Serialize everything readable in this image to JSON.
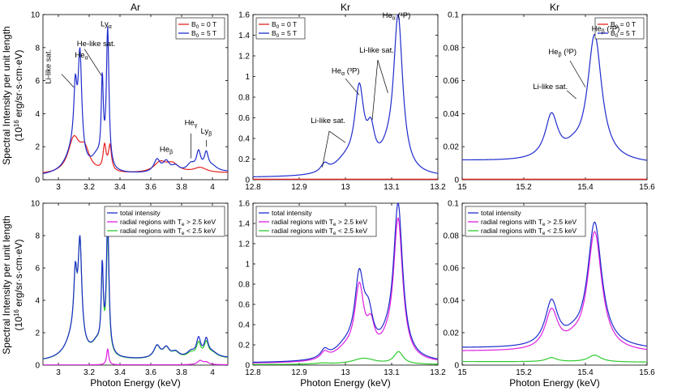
{
  "figure": {
    "shared_ylabel_line1": "Spectral Intensity per unit length",
    "shared_ylabel_line2": "(10^16 erg/sr·s·cm·eV)",
    "shared_xlabel": "Photon Energy (keV)"
  },
  "chart_data": [
    {
      "id": "top-ar",
      "type": "line",
      "title": "Ar",
      "xlabel": "",
      "ylabel": "Spectral Intensity per unit length",
      "xlim": [
        2.9,
        4.1
      ],
      "ylim": [
        0,
        10
      ],
      "xticks": [
        3,
        3.2,
        3.4,
        3.6,
        3.8,
        4
      ],
      "yticks": [
        0,
        2,
        4,
        6,
        8,
        10
      ],
      "xticklabels": [
        "3",
        "3.2",
        "3.4",
        "3.6",
        "3.8",
        "4"
      ],
      "yticklabels": [
        "0",
        "2",
        "4",
        "6",
        "8",
        "10"
      ],
      "legend": {
        "location": "top-right",
        "entries": [
          {
            "label": "B0 = 0 T",
            "color": "#e52222"
          },
          {
            "label": "B0 = 5 T",
            "color": "#1f2ccc"
          }
        ]
      },
      "series": [
        {
          "name": "B0 = 0 T",
          "color": "#e52222",
          "baseline": 0.3,
          "baseline_end": 0.4,
          "peaks": [
            [
              3.1,
              2.0,
              0.045
            ],
            [
              3.17,
              1.3,
              0.04
            ],
            [
              3.3,
              1.5,
              0.012
            ],
            [
              3.335,
              1.5,
              0.012
            ],
            [
              3.66,
              0.6,
              0.05
            ],
            [
              3.74,
              0.5,
              0.05
            ],
            [
              3.92,
              0.3,
              0.05
            ]
          ]
        },
        {
          "name": "B0 = 5 T",
          "color": "#1f2ccc",
          "baseline": 0.2,
          "baseline_end": 0.45,
          "peaks": [
            [
              3.11,
              3.5,
              0.012
            ],
            [
              3.14,
              6.1,
              0.014
            ],
            [
              3.285,
              5.0,
              0.008
            ],
            [
              3.32,
              8.4,
              0.01
            ],
            [
              3.1,
              1.5,
              0.06
            ],
            [
              3.25,
              0.8,
              0.04
            ],
            [
              3.64,
              0.75,
              0.025
            ],
            [
              3.7,
              0.6,
              0.025
            ],
            [
              3.76,
              0.35,
              0.03
            ],
            [
              3.86,
              0.45,
              0.03
            ],
            [
              3.91,
              1.1,
              0.017
            ],
            [
              3.96,
              1.0,
              0.016
            ],
            [
              4.0,
              0.3,
              0.04
            ]
          ]
        }
      ],
      "annotations": [
        {
          "text": "Ly",
          "sub": "α",
          "x": 3.31,
          "y": 9.3,
          "ax": 3.31,
          "ay": 9.0,
          "anchor": "middle"
        },
        {
          "text": "He-like sat.",
          "x": 3.12,
          "y": 8.1,
          "ax": 3.28,
          "ay": 6.3,
          "lx": 3.17,
          "ly": 7.9,
          "anchor": "start"
        },
        {
          "text": "He",
          "sub": "α",
          "x": 3.15,
          "y": 7.4,
          "ax": 3.15,
          "ay": 7.1,
          "anchor": "middle"
        },
        {
          "text": "Li-like sat.",
          "x": 2.95,
          "y": 5.8,
          "ax": 3.1,
          "ay": 5.6,
          "lx": 3.02,
          "ly": 6.4,
          "anchor": "start",
          "vertical": true
        },
        {
          "text": "He",
          "sub": "β",
          "x": 3.7,
          "y": 1.7,
          "ax": 3.7,
          "ay": 1.4,
          "anchor": "middle"
        },
        {
          "text": "He",
          "sub": "γ",
          "x": 3.86,
          "y": 3.3,
          "ax": 3.86,
          "ay": 1.3,
          "lx": 3.86,
          "ly": 2.8,
          "anchor": "middle"
        },
        {
          "text": "Ly",
          "sub": "β",
          "x": 3.96,
          "y": 2.8,
          "ax": 3.96,
          "ay": 2.0,
          "lx": 3.96,
          "ly": 2.4,
          "anchor": "middle"
        }
      ]
    },
    {
      "id": "top-kr1",
      "type": "line",
      "title": "Kr",
      "xlim": [
        12.8,
        13.2
      ],
      "ylim": [
        0,
        1.6
      ],
      "xticks": [
        12.8,
        12.9,
        13,
        13.1,
        13.2
      ],
      "yticks": [
        0,
        0.2,
        0.4,
        0.6,
        0.8,
        1,
        1.2,
        1.4,
        1.6
      ],
      "xticklabels": [
        "12.8",
        "12.9",
        "13",
        "13.1",
        "13.2"
      ],
      "yticklabels": [
        "0",
        "0.2",
        "0.4",
        "0.6",
        "0.8",
        "1",
        "1.2",
        "1.4",
        "1.6"
      ],
      "legend": {
        "location": "top-left",
        "entries": [
          {
            "label": "B0 = 0 T",
            "color": "#e52222"
          },
          {
            "label": "B0 = 5 T",
            "color": "#1f2ccc"
          }
        ]
      },
      "series": [
        {
          "name": "B0 = 0 T",
          "color": "#e52222",
          "baseline": 0.005,
          "baseline_end": 0.005,
          "peaks": []
        },
        {
          "name": "B0 = 5 T",
          "color": "#1f2ccc",
          "baseline": 0.02,
          "baseline_end": 0.02,
          "peaks": [
            [
              12.955,
              0.08,
              0.01
            ],
            [
              13.03,
              0.77,
              0.012
            ],
            [
              13.055,
              0.32,
              0.01
            ],
            [
              13.0,
              0.12,
              0.03
            ],
            [
              13.114,
              1.5,
              0.012
            ],
            [
              13.09,
              0.12,
              0.02
            ]
          ]
        }
      ],
      "annotations": [
        {
          "text": "He",
          "sub": "α",
          "tail": " (¹P)",
          "x": 13.08,
          "y": 1.57,
          "ax": 13.115,
          "ay": 1.52,
          "anchor": "start"
        },
        {
          "text": "Li-like sat.",
          "x": 13.03,
          "y": 1.23,
          "ax": 13.058,
          "ay": 0.58,
          "lx": 13.07,
          "ly": 1.16,
          "ax2": 13.092,
          "ay2": 0.84,
          "anchor": "start"
        },
        {
          "text": "He",
          "sub": "α",
          "tail": " (³P)",
          "x": 12.97,
          "y": 1.03,
          "ax": 13.03,
          "ay": 0.82,
          "lx": 13.0,
          "ly": 0.98,
          "anchor": "start"
        },
        {
          "text": "Li-like sat.",
          "x": 12.925,
          "y": 0.55,
          "ax": 12.95,
          "ay": 0.12,
          "lx": 12.965,
          "ly": 0.47,
          "ax2": 13.0,
          "ay2": 0.36,
          "anchor": "start"
        }
      ]
    },
    {
      "id": "top-kr2",
      "type": "line",
      "title": "Kr",
      "xlim": [
        15.0,
        15.6
      ],
      "ylim": [
        0,
        0.1
      ],
      "xticks": [
        15,
        15.2,
        15.4,
        15.6
      ],
      "yticks": [
        0,
        0.02,
        0.04,
        0.06,
        0.08,
        0.1
      ],
      "xticklabels": [
        "15",
        "15.2",
        "15.4",
        "15.6"
      ],
      "yticklabels": [
        "0",
        "0.02",
        "0.04",
        "0.06",
        "0.08",
        "0.1"
      ],
      "legend": {
        "location": "top-right",
        "entries": [
          {
            "label": "B0 = 0 T",
            "color": "#e52222"
          },
          {
            "label": "B0 = 5 T",
            "color": "#1f2ccc"
          }
        ]
      },
      "series": [
        {
          "name": "B0 = 0 T",
          "color": "#e52222",
          "baseline": 0.0003,
          "baseline_end": 0.0003,
          "peaks": []
        },
        {
          "name": "B0 = 5 T",
          "color": "#1f2ccc",
          "baseline": 0.0115,
          "baseline_end": 0.0095,
          "peaks": [
            [
              15.29,
              0.0265,
              0.025
            ],
            [
              15.43,
              0.0765,
              0.028
            ],
            [
              15.36,
              0.004,
              0.03
            ]
          ]
        }
      ],
      "annotations": [
        {
          "text": "He",
          "sub": "β",
          "tail": " (¹P)",
          "x": 15.42,
          "y": 0.09,
          "ax": 15.43,
          "ay": 0.0885,
          "anchor": "start"
        },
        {
          "text": "He",
          "sub": "β",
          "tail": " (³P)",
          "x": 15.28,
          "y": 0.076,
          "ax": 15.4,
          "ay": 0.056,
          "lx": 15.35,
          "ly": 0.072,
          "anchor": "start"
        },
        {
          "text": "Li-like sat.",
          "x": 15.23,
          "y": 0.055,
          "ax": 15.37,
          "ay": 0.049,
          "lx": 15.34,
          "ly": 0.054,
          "anchor": "start"
        }
      ]
    },
    {
      "id": "bot-ar",
      "type": "line",
      "title": "",
      "xlabel": "Photon Energy (keV)",
      "xlim": [
        2.9,
        4.1
      ],
      "ylim": [
        0,
        10
      ],
      "xticks": [
        3,
        3.2,
        3.4,
        3.6,
        3.8,
        4
      ],
      "yticks": [
        0,
        2,
        4,
        6,
        8,
        10
      ],
      "xticklabels": [
        "3",
        "3.2",
        "3.4",
        "3.6",
        "3.8",
        "4"
      ],
      "yticklabels": [
        "0",
        "2",
        "4",
        "6",
        "8",
        "10"
      ],
      "legend": {
        "location": "top-right",
        "entries": [
          {
            "label": "total intensity",
            "color": "#1f2ccc"
          },
          {
            "label": "radial regions with T_e > 2.5 keV",
            "color": "#e01ee0"
          },
          {
            "label": "radial regions with T_e < 2.5 keV",
            "color": "#2ecc2e"
          }
        ]
      },
      "series": [
        {
          "name": "radial regions with T_e > 2.5 keV",
          "color": "#e01ee0",
          "baseline": 0.01,
          "baseline_end": 0.02,
          "peaks": [
            [
              3.32,
              1.0,
              0.008
            ],
            [
              3.92,
              0.25,
              0.02
            ],
            [
              3.96,
              0.15,
              0.02
            ]
          ]
        },
        {
          "name": "radial regions with T_e < 2.5 keV",
          "color": "#2ecc2e",
          "baseline": 0.2,
          "baseline_end": 0.4,
          "peaks": [
            [
              3.11,
              3.5,
              0.012
            ],
            [
              3.14,
              6.1,
              0.014
            ],
            [
              3.285,
              5.0,
              0.008
            ],
            [
              3.32,
              7.4,
              0.01
            ],
            [
              3.1,
              1.5,
              0.06
            ],
            [
              3.25,
              0.8,
              0.04
            ],
            [
              3.64,
              0.75,
              0.025
            ],
            [
              3.7,
              0.6,
              0.025
            ],
            [
              3.76,
              0.35,
              0.03
            ],
            [
              3.86,
              0.3,
              0.03
            ],
            [
              3.91,
              0.85,
              0.017
            ],
            [
              3.96,
              0.85,
              0.016
            ],
            [
              4.0,
              0.3,
              0.04
            ]
          ]
        },
        {
          "name": "total intensity",
          "color": "#1f2ccc",
          "baseline": 0.21,
          "baseline_end": 0.42,
          "peaks": [
            [
              3.11,
              3.5,
              0.012
            ],
            [
              3.14,
              6.1,
              0.014
            ],
            [
              3.285,
              5.0,
              0.008
            ],
            [
              3.32,
              8.4,
              0.01
            ],
            [
              3.1,
              1.5,
              0.06
            ],
            [
              3.25,
              0.8,
              0.04
            ],
            [
              3.64,
              0.75,
              0.025
            ],
            [
              3.7,
              0.6,
              0.025
            ],
            [
              3.76,
              0.35,
              0.03
            ],
            [
              3.86,
              0.35,
              0.03
            ],
            [
              3.91,
              1.1,
              0.017
            ],
            [
              3.96,
              1.0,
              0.016
            ],
            [
              4.0,
              0.3,
              0.04
            ]
          ]
        }
      ]
    },
    {
      "id": "bot-kr1",
      "type": "line",
      "title": "",
      "xlabel": "Photon Energy (keV)",
      "xlim": [
        12.8,
        13.2
      ],
      "ylim": [
        0,
        1.6
      ],
      "xticks": [
        12.8,
        12.9,
        13,
        13.1,
        13.2
      ],
      "yticks": [
        0,
        0.2,
        0.4,
        0.6,
        0.8,
        1,
        1.2,
        1.4,
        1.6
      ],
      "xticklabels": [
        "12.8",
        "12.9",
        "13",
        "13.1",
        "13.2"
      ],
      "yticklabels": [
        "0",
        "0.2",
        "0.4",
        "0.6",
        "0.8",
        "1",
        "1.2",
        "1.4",
        "1.6"
      ],
      "legend": {
        "location": "top-left",
        "entries": [
          {
            "label": "total intensity",
            "color": "#1f2ccc"
          },
          {
            "label": "radial regions with T_e > 2.5 keV",
            "color": "#e01ee0"
          },
          {
            "label": "radial regions with T_e < 2.5 keV",
            "color": "#2ecc2e"
          }
        ]
      },
      "series": [
        {
          "name": "radial regions with T_e < 2.5 keV",
          "color": "#2ecc2e",
          "baseline": 0.005,
          "baseline_end": 0.005,
          "peaks": [
            [
              13.04,
              0.06,
              0.03
            ],
            [
              13.115,
              0.12,
              0.012
            ],
            [
              12.95,
              0.01,
              0.02
            ]
          ]
        },
        {
          "name": "radial regions with T_e > 2.5 keV",
          "color": "#e01ee0",
          "baseline": 0.015,
          "baseline_end": 0.015,
          "peaks": [
            [
              12.955,
              0.07,
              0.01
            ],
            [
              13.03,
              0.68,
              0.012
            ],
            [
              13.055,
              0.26,
              0.01
            ],
            [
              13.0,
              0.1,
              0.03
            ],
            [
              13.114,
              1.37,
              0.012
            ],
            [
              13.09,
              0.1,
              0.02
            ]
          ]
        },
        {
          "name": "total intensity",
          "color": "#1f2ccc",
          "baseline": 0.02,
          "baseline_end": 0.02,
          "peaks": [
            [
              12.955,
              0.08,
              0.01
            ],
            [
              13.03,
              0.74,
              0.012
            ],
            [
              13.05,
              0.34,
              0.012
            ],
            [
              13.0,
              0.12,
              0.03
            ],
            [
              13.114,
              1.5,
              0.012
            ],
            [
              13.09,
              0.12,
              0.02
            ]
          ]
        }
      ]
    },
    {
      "id": "bot-kr2",
      "type": "line",
      "title": "",
      "xlabel": "Photon Energy (keV)",
      "xlim": [
        15.0,
        15.6
      ],
      "ylim": [
        0,
        0.1
      ],
      "xticks": [
        15,
        15.2,
        15.4,
        15.6
      ],
      "yticks": [
        0,
        0.02,
        0.04,
        0.06,
        0.08,
        0.1
      ],
      "xticklabels": [
        "15",
        "15.2",
        "15.4",
        "15.6"
      ],
      "yticklabels": [
        "0",
        "0.02",
        "0.04",
        "0.06",
        "0.08",
        "0.1"
      ],
      "legend": {
        "location": "top-left",
        "entries": [
          {
            "label": "total intensity",
            "color": "#1f2ccc"
          },
          {
            "label": "radial regions with T_e > 2.5 keV",
            "color": "#e01ee0"
          },
          {
            "label": "radial regions with T_e < 2.5 keV",
            "color": "#2ecc2e"
          }
        ]
      },
      "series": [
        {
          "name": "radial regions with T_e < 2.5 keV",
          "color": "#2ecc2e",
          "baseline": 0.0022,
          "baseline_end": 0.0018,
          "peaks": [
            [
              15.29,
              0.0025,
              0.022
            ],
            [
              15.43,
              0.0042,
              0.025
            ]
          ]
        },
        {
          "name": "radial regions with T_e > 2.5 keV",
          "color": "#e01ee0",
          "baseline": 0.0085,
          "baseline_end": 0.0075,
          "peaks": [
            [
              15.29,
              0.0238,
              0.025
            ],
            [
              15.43,
              0.0735,
              0.028
            ],
            [
              15.36,
              0.003,
              0.03
            ]
          ]
        },
        {
          "name": "total intensity",
          "color": "#1f2ccc",
          "baseline": 0.0105,
          "baseline_end": 0.0095,
          "peaks": [
            [
              15.29,
              0.0272,
              0.025
            ],
            [
              15.43,
              0.0772,
              0.028
            ],
            [
              15.36,
              0.0035,
              0.03
            ]
          ]
        }
      ]
    }
  ]
}
